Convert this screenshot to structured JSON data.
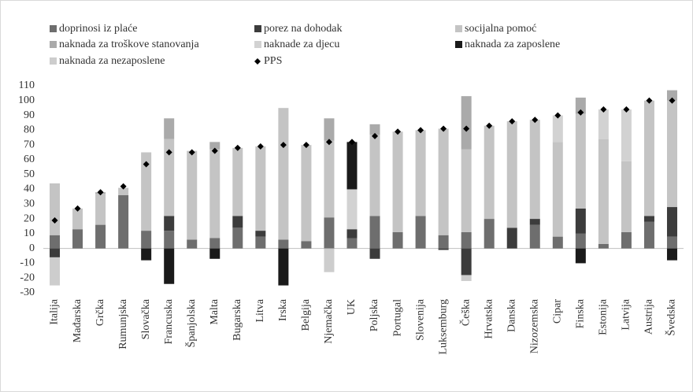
{
  "chart_data": {
    "type": "bar",
    "stacked": true,
    "categories": [
      "Italija",
      "Mađarska",
      "Grčka",
      "Rumunjska",
      "Slovačka",
      "Francuska",
      "Španjolska",
      "Malta",
      "Bugarska",
      "Litva",
      "Irska",
      "Belgija",
      "Njemačka",
      "UK",
      "Poljska",
      "Portugal",
      "Slovenija",
      "Luksemburg",
      "Češka",
      "Hrvatska",
      "Danska",
      "Nizozemska",
      "Cipar",
      "Finska",
      "Estonija",
      "Latvija",
      "Austrija",
      "Švedska"
    ],
    "series": [
      {
        "name": "doprinosi iz plaće",
        "color": "#6e6e6e",
        "values": [
          9,
          13,
          16,
          36,
          12,
          12,
          6,
          7,
          14,
          8,
          6,
          5,
          21,
          7,
          22,
          11,
          22,
          9,
          11,
          20,
          0,
          16,
          8,
          10,
          3,
          11,
          18,
          8
        ]
      },
      {
        "name": "porez na dohodak",
        "color": "#3c3c3c",
        "values": [
          -6,
          0,
          0,
          0,
          0,
          10,
          0,
          0,
          8,
          4,
          0,
          0,
          0,
          6,
          -7,
          0,
          0,
          -1,
          -18,
          0,
          14,
          4,
          0,
          17,
          0,
          0,
          4,
          20
        ]
      },
      {
        "name": "socijalna pomoć",
        "color": "#c4c4c4",
        "values": [
          35,
          14,
          21,
          5,
          53,
          52,
          60,
          60,
          46,
          57,
          89,
          65,
          52,
          0,
          55,
          68,
          58,
          72,
          56,
          63,
          72,
          67,
          64,
          64,
          71,
          48,
          78,
          72
        ]
      },
      {
        "name": "naknada za troškove stanovanja",
        "color": "#aaaaaa",
        "values": [
          0,
          0,
          1,
          0,
          0,
          14,
          0,
          5,
          0,
          0,
          0,
          0,
          15,
          0,
          7,
          0,
          0,
          0,
          36,
          0,
          0,
          0,
          0,
          11,
          0,
          0,
          0,
          7
        ]
      },
      {
        "name": "naknade za djecu",
        "color": "#d2d2d2",
        "values": [
          0,
          0,
          0,
          0,
          0,
          0,
          0,
          0,
          0,
          0,
          0,
          0,
          0,
          27,
          0,
          0,
          0,
          0,
          0,
          0,
          0,
          0,
          18,
          0,
          20,
          35,
          0,
          0
        ]
      },
      {
        "name": "naknada za zaposlene",
        "color": "#1a1a1a",
        "values": [
          0,
          0,
          0,
          0,
          -8,
          -24,
          0,
          -7,
          0,
          0,
          -25,
          0,
          0,
          32,
          0,
          0,
          0,
          0,
          0,
          0,
          0,
          0,
          0,
          -10,
          0,
          0,
          0,
          -8
        ]
      },
      {
        "name": "naknada za nezaposlene",
        "color": "#cdcdcd",
        "values": [
          -19,
          0,
          0,
          0,
          0,
          0,
          0,
          0,
          0,
          0,
          0,
          0,
          -16,
          0,
          0,
          0,
          0,
          0,
          -4,
          0,
          0,
          0,
          0,
          0,
          0,
          0,
          0,
          0
        ]
      }
    ],
    "pps": {
      "name": "PPS",
      "color": "#000000",
      "values": [
        19,
        27,
        38,
        42,
        57,
        65,
        65,
        66,
        68,
        69,
        70,
        70,
        72,
        72,
        76,
        79,
        80,
        81,
        81,
        83,
        86,
        87,
        90,
        92,
        94,
        94,
        100,
        100
      ]
    },
    "ylim": [
      -30,
      110
    ],
    "yticks": [
      -30,
      -20,
      -10,
      0,
      10,
      20,
      30,
      40,
      50,
      60,
      70,
      80,
      90,
      100,
      110
    ],
    "grid": false
  }
}
